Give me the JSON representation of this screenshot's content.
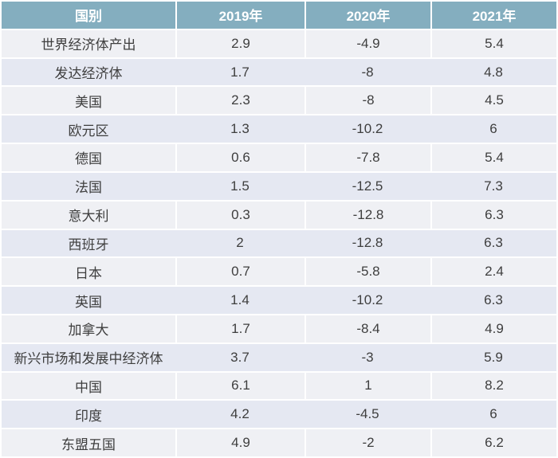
{
  "chart_data": {
    "type": "table",
    "title": "",
    "columns": [
      "国别",
      "2019年",
      "2020年",
      "2021年"
    ],
    "rows": [
      [
        "世界经济体产出",
        "2.9",
        "-4.9",
        "5.4"
      ],
      [
        "发达经济体",
        "1.7",
        "-8",
        "4.8"
      ],
      [
        "美国",
        "2.3",
        "-8",
        "4.5"
      ],
      [
        "欧元区",
        "1.3",
        "-10.2",
        "6"
      ],
      [
        "德国",
        "0.6",
        "-7.8",
        "5.4"
      ],
      [
        "法国",
        "1.5",
        "-12.5",
        "7.3"
      ],
      [
        "意大利",
        "0.3",
        "-12.8",
        "6.3"
      ],
      [
        "西班牙",
        "2",
        "-12.8",
        "6.3"
      ],
      [
        "日本",
        "0.7",
        "-5.8",
        "2.4"
      ],
      [
        "英国",
        "1.4",
        "-10.2",
        "6.3"
      ],
      [
        "加拿大",
        "1.7",
        "-8.4",
        "4.9"
      ],
      [
        "新兴市场和发展中经济体",
        "3.7",
        "-3",
        "5.9"
      ],
      [
        "中国",
        "6.1",
        "1",
        "8.2"
      ],
      [
        "印度",
        "4.2",
        "-4.5",
        "6"
      ],
      [
        "东盟五国",
        "4.9",
        "-2",
        "6.2"
      ]
    ]
  },
  "colors": {
    "header_bg": "#84aebf",
    "header_text": "#ffffff",
    "row_light": "#eff0f4",
    "row_dark": "#e5e8f2",
    "separator": "#ffffff",
    "body_text": "#3e3e3e"
  }
}
